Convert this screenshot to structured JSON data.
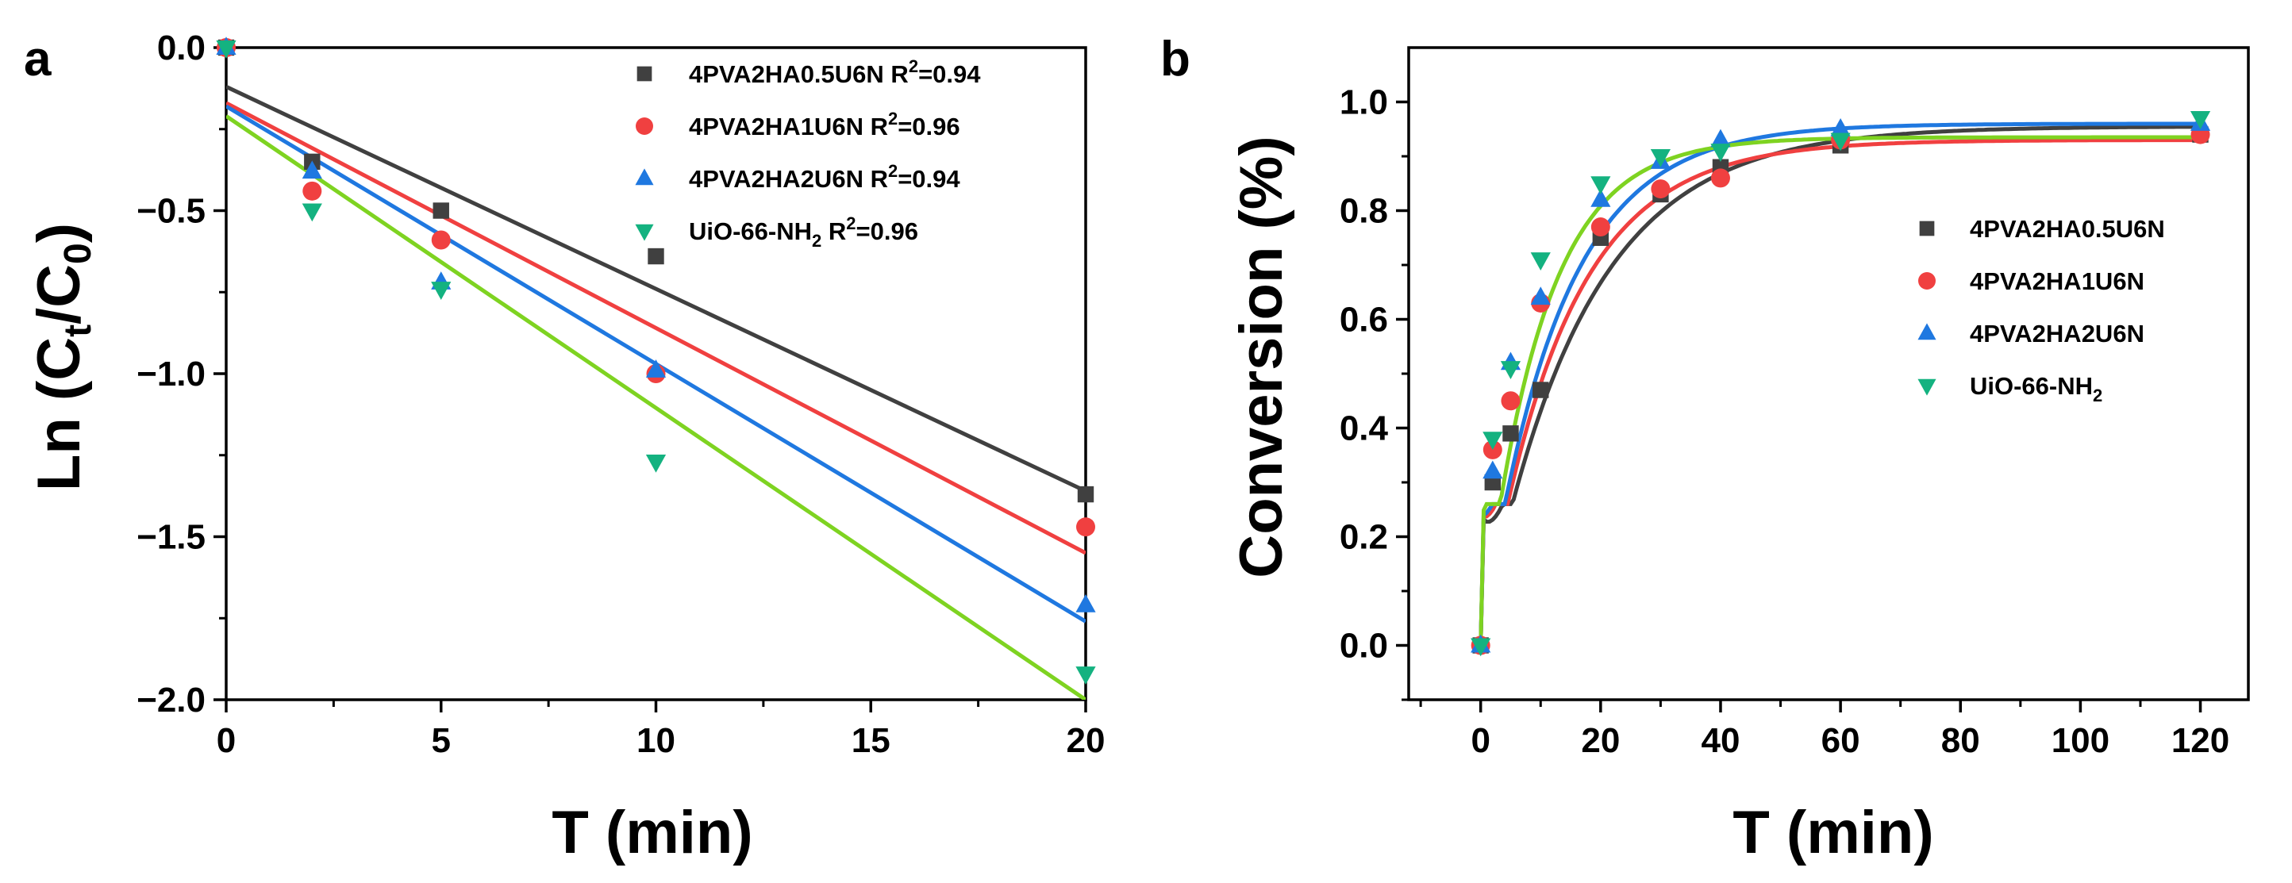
{
  "chart_data": [
    {
      "panel": "a",
      "type": "scatter",
      "xlabel": "T (min)",
      "ylabel_parts": [
        "Ln (C",
        "t",
        "/C",
        "0",
        ")"
      ],
      "xlim": [
        0,
        20
      ],
      "ylim": [
        -2.0,
        0.0
      ],
      "xticks": [
        0,
        5,
        10,
        15,
        20
      ],
      "xtick_labels": [
        "0",
        "5",
        "10",
        "15",
        "20"
      ],
      "yticks": [
        0.0,
        -0.5,
        -1.0,
        -1.5,
        -2.0
      ],
      "ytick_labels": [
        "0.0",
        "−0.5",
        "−1.0",
        "−1.5",
        "−2.0"
      ],
      "legend_position": "top-right",
      "series": [
        {
          "name": "4PVA2HA0.5U6N",
          "r2_label": "R",
          "r2_exp": "2",
          "r2_value": "=0.94",
          "color": "#404040",
          "marker": "square",
          "x": [
            0,
            2,
            5,
            10,
            20
          ],
          "y": [
            0.0,
            -0.35,
            -0.5,
            -0.64,
            -1.37
          ],
          "fit_line": {
            "x": [
              0,
              20
            ],
            "y": [
              -0.12,
              -1.36
            ]
          }
        },
        {
          "name": "4PVA2HA1U6N",
          "r2_label": "R",
          "r2_exp": "2",
          "r2_value": "=0.96",
          "color": "#f04040",
          "marker": "circle",
          "x": [
            0,
            2,
            5,
            10,
            20
          ],
          "y": [
            0.0,
            -0.44,
            -0.59,
            -1.0,
            -1.47
          ],
          "fit_line": {
            "x": [
              0,
              20
            ],
            "y": [
              -0.17,
              -1.55
            ]
          }
        },
        {
          "name": "4PVA2HA2U6N",
          "r2_label": "R",
          "r2_exp": "2",
          "r2_value": "=0.94",
          "color": "#1f78e0",
          "marker": "triangle-up",
          "x": [
            0,
            2,
            5,
            10,
            20
          ],
          "y": [
            0.0,
            -0.38,
            -0.72,
            -0.99,
            -1.71
          ],
          "fit_line": {
            "x": [
              0,
              20
            ],
            "y": [
              -0.18,
              -1.76
            ]
          }
        },
        {
          "name": "UiO-66-NH",
          "name_sub": "2",
          "r2_label": "R",
          "r2_exp": "2",
          "r2_value": "=0.96",
          "color": "#14b280",
          "line_color": "#7ed321",
          "marker": "triangle-down",
          "x": [
            0,
            2,
            5,
            10,
            20
          ],
          "y": [
            0.0,
            -0.5,
            -0.74,
            -1.27,
            -1.92
          ],
          "fit_line": {
            "x": [
              0,
              20
            ],
            "y": [
              -0.21,
              -2.0
            ]
          }
        }
      ]
    },
    {
      "panel": "b",
      "type": "scatter",
      "xlabel": "T (min)",
      "ylabel": "Conversion (%)",
      "xlim": [
        -12,
        128
      ],
      "ylim": [
        -0.1,
        1.1
      ],
      "xticks": [
        0,
        20,
        40,
        60,
        80,
        100,
        120
      ],
      "xtick_labels": [
        "0",
        "20",
        "40",
        "60",
        "80",
        "100",
        "120"
      ],
      "yticks": [
        0.0,
        0.2,
        0.4,
        0.6,
        0.8,
        1.0
      ],
      "ytick_labels": [
        "0.0",
        "0.2",
        "0.4",
        "0.6",
        "0.8",
        "1.0"
      ],
      "legend_position": "center-right",
      "series": [
        {
          "name": "4PVA2HA0.5U6N",
          "color": "#404040",
          "marker": "square",
          "x": [
            0,
            2,
            5,
            10,
            20,
            30,
            40,
            60,
            120
          ],
          "y": [
            0.0,
            0.3,
            0.39,
            0.47,
            0.75,
            0.83,
            0.88,
            0.92,
            0.94
          ],
          "fit": {
            "a": 0.955,
            "k": 0.06
          }
        },
        {
          "name": "4PVA2HA1U6N",
          "color": "#f04040",
          "marker": "circle",
          "x": [
            0,
            2,
            5,
            10,
            20,
            30,
            40,
            60,
            120
          ],
          "y": [
            0.0,
            0.36,
            0.45,
            0.63,
            0.77,
            0.84,
            0.86,
            0.93,
            0.94
          ],
          "fit": {
            "a": 0.93,
            "k": 0.073
          }
        },
        {
          "name": "4PVA2HA2U6N",
          "color": "#1f78e0",
          "marker": "triangle-up",
          "x": [
            0,
            2,
            5,
            10,
            20,
            30,
            40,
            60,
            120
          ],
          "y": [
            0.0,
            0.32,
            0.52,
            0.64,
            0.82,
            0.89,
            0.93,
            0.95,
            0.96
          ],
          "fit": {
            "a": 0.96,
            "k": 0.078
          }
        },
        {
          "name": "UiO-66-NH",
          "name_sub": "2",
          "color": "#14b280",
          "line_color": "#7ed321",
          "marker": "triangle-down",
          "x": [
            0,
            2,
            5,
            10,
            20,
            30,
            40,
            60,
            120
          ],
          "y": [
            0.0,
            0.38,
            0.51,
            0.71,
            0.85,
            0.9,
            0.91,
            0.93,
            0.97
          ],
          "fit": {
            "a": 0.935,
            "k": 0.1
          }
        }
      ]
    }
  ]
}
